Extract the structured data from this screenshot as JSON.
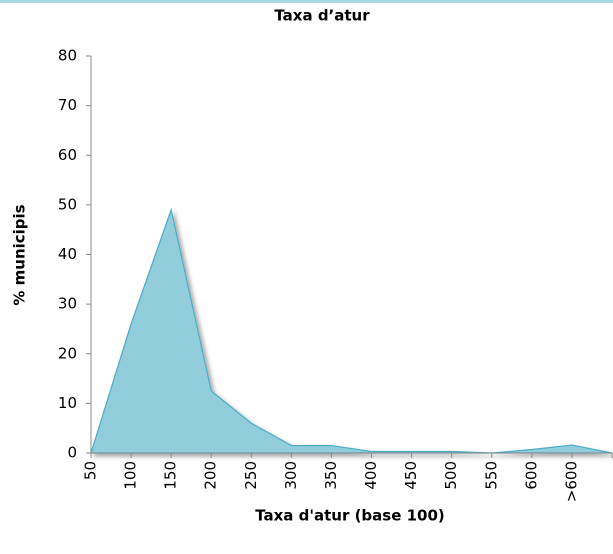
{
  "chart_data": {
    "type": "area",
    "title": "Taxa d’atur",
    "x_label": "Taxa d'atur (base 100)",
    "y_label": "% municipis",
    "categories": [
      "50",
      "100",
      "150",
      "200",
      "250",
      "300",
      "350",
      "400",
      "450",
      "500",
      "550",
      "600",
      ">600",
      null
    ],
    "values": [
      0,
      26,
      49,
      12.5,
      6,
      1.5,
      1.5,
      0.3,
      0.3,
      0.3,
      0,
      0.7,
      1.6,
      0
    ],
    "color": "#92cddc",
    "line_color": "#4bacc6",
    "ylim": [
      0,
      80
    ],
    "yticks": [
      0,
      10,
      20,
      30,
      40,
      50,
      60,
      70,
      80
    ],
    "grid": false
  }
}
